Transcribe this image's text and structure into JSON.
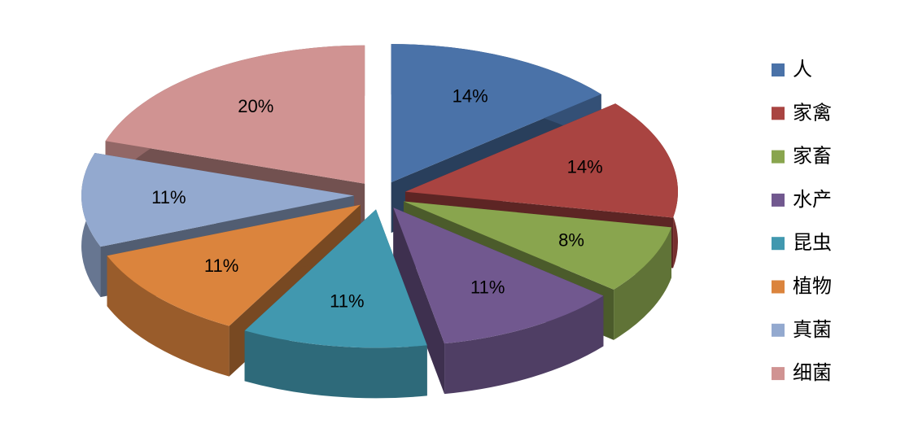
{
  "chart_data": {
    "type": "pie",
    "categories": [
      "人",
      "家禽",
      "家畜",
      "水产",
      "昆虫",
      "植物",
      "真菌",
      "细菌"
    ],
    "values": [
      14,
      14,
      8,
      11,
      11,
      11,
      11,
      20
    ],
    "value_labels": [
      "14%",
      "14%",
      "8%",
      "11%",
      "11%",
      "11%",
      "11%",
      "20%"
    ],
    "colors": [
      "#4a72a8",
      "#a94441",
      "#89a54e",
      "#71588f",
      "#4198af",
      "#db843d",
      "#93a9cf",
      "#d09392"
    ],
    "legend": "right"
  }
}
